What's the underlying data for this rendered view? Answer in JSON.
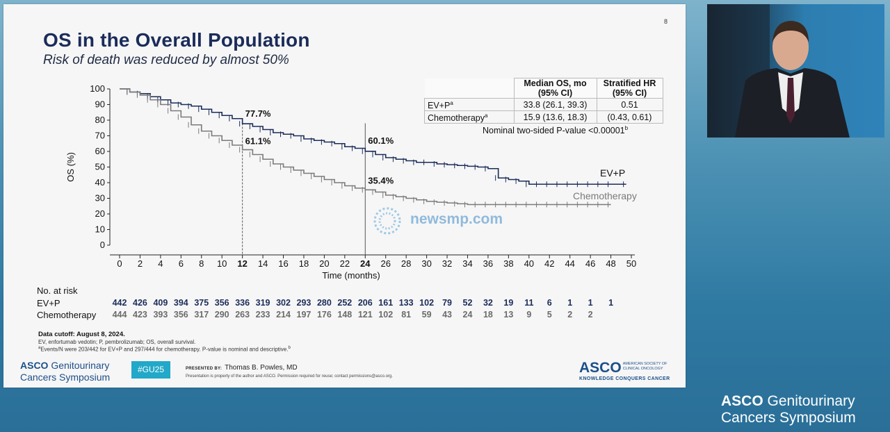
{
  "slide": {
    "number": "8",
    "title": "OS in the Overall Population",
    "subtitle": "Risk of death was reduced by almost 50%"
  },
  "stats_table": {
    "headers": [
      "",
      "Median OS, mo (95% CI)",
      "Stratified HR (95% CI)"
    ],
    "rows": [
      {
        "arm": "EV+P",
        "sup": "a",
        "median": "33.8 (26.1, 39.3)",
        "hr": "0.51"
      },
      {
        "arm": "Chemotherapy",
        "sup": "a",
        "median": "15.9 (13.6, 18.3)",
        "hr": "(0.43, 0.61)"
      }
    ],
    "pvalue": "Nominal two-sided P-value <0.00001",
    "pvalue_sup": "b"
  },
  "chart_data": {
    "type": "line",
    "xlabel": "Time (months)",
    "ylabel": "OS (%)",
    "xlim": [
      0,
      50
    ],
    "ylim": [
      0,
      100
    ],
    "x_ticks": [
      "0",
      "2",
      "4",
      "6",
      "8",
      "10",
      "12",
      "14",
      "16",
      "18",
      "20",
      "22",
      "24",
      "26",
      "28",
      "30",
      "32",
      "34",
      "36",
      "38",
      "40",
      "42",
      "44",
      "46",
      "48",
      "50"
    ],
    "x_ticks_bold": [
      "12",
      "24"
    ],
    "y_ticks": [
      "0",
      "10",
      "20",
      "30",
      "40",
      "50",
      "60",
      "70",
      "80",
      "90",
      "100"
    ],
    "series": [
      {
        "name": "EV+P",
        "color": "#1b2c5a",
        "x": [
          0,
          1,
          2,
          3,
          4,
          5,
          6,
          7,
          8,
          9,
          10,
          11,
          12,
          13,
          14,
          15,
          16,
          17,
          18,
          19,
          20,
          21,
          22,
          23,
          24,
          25,
          26,
          27,
          28,
          29,
          30,
          31,
          32,
          33,
          34,
          35,
          36,
          37,
          38,
          39,
          40,
          41,
          42,
          43,
          44,
          45,
          46,
          47,
          48,
          49.5
        ],
        "y": [
          100,
          98,
          97,
          95,
          93,
          91,
          90,
          89,
          87,
          85,
          83,
          81,
          77.7,
          76,
          74,
          72,
          71,
          70,
          68,
          67,
          66,
          65,
          63,
          62,
          60.1,
          58,
          56,
          55,
          54,
          53,
          53,
          52,
          51.5,
          51,
          50.5,
          50,
          49,
          43,
          42,
          41,
          39,
          39,
          39,
          39,
          39,
          39,
          39,
          39,
          39,
          39
        ]
      },
      {
        "name": "Chemotherapy",
        "color": "#7a7a7a",
        "x": [
          0,
          1,
          2,
          3,
          4,
          5,
          6,
          7,
          8,
          9,
          10,
          11,
          12,
          13,
          14,
          15,
          16,
          17,
          18,
          19,
          20,
          21,
          22,
          23,
          24,
          25,
          26,
          27,
          28,
          29,
          30,
          31,
          32,
          33,
          34,
          35,
          36,
          37,
          38,
          39,
          40,
          41,
          42,
          43,
          44,
          45,
          46,
          47,
          48
        ],
        "y": [
          100,
          98,
          96,
          93,
          90,
          86,
          82,
          77,
          73,
          70,
          67,
          64,
          61.1,
          58,
          55,
          52,
          50,
          48,
          46,
          44,
          42,
          40,
          38,
          36.5,
          35.4,
          34,
          32,
          31,
          30,
          29,
          28,
          27.5,
          27,
          26.5,
          26,
          26,
          26,
          26,
          26,
          26,
          26,
          26,
          26,
          26,
          26,
          26,
          26,
          26,
          26
        ]
      }
    ],
    "annotations": [
      {
        "text": "77.7%",
        "x": 12,
        "y": 77.7
      },
      {
        "text": "61.1%",
        "x": 12,
        "y": 61.1
      },
      {
        "text": "60.1%",
        "x": 24,
        "y": 60.1
      },
      {
        "text": "35.4%",
        "x": 24,
        "y": 35.4
      }
    ],
    "reference_lines_x": [
      12,
      24
    ],
    "legend_labels": [
      {
        "text": "EV+P",
        "series": "EV+P"
      },
      {
        "text": "Chemotherapy",
        "series": "Chemotherapy"
      }
    ]
  },
  "risk_table": {
    "title": "No. at risk",
    "times": [
      0,
      2,
      4,
      6,
      8,
      10,
      12,
      14,
      16,
      18,
      20,
      22,
      24,
      26,
      28,
      30,
      32,
      34,
      36,
      38,
      40,
      42,
      44,
      46,
      48
    ],
    "ev_label": "EV+P",
    "ev": [
      "442",
      "426",
      "409",
      "394",
      "375",
      "356",
      "336",
      "319",
      "302",
      "293",
      "280",
      "252",
      "206",
      "161",
      "133",
      "102",
      "79",
      "52",
      "32",
      "19",
      "11",
      "6",
      "1",
      "1",
      "1"
    ],
    "chemo_label": "Chemotherapy",
    "chemo": [
      "444",
      "423",
      "393",
      "356",
      "317",
      "290",
      "263",
      "233",
      "214",
      "197",
      "176",
      "148",
      "121",
      "102",
      "81",
      "59",
      "43",
      "24",
      "18",
      "13",
      "9",
      "5",
      "2",
      "2",
      ""
    ]
  },
  "notes": {
    "cutoff": "Data cutoff: August 8, 2024.",
    "abbrev": "EV, enfortumab vedotin; P, pembrolizumab; OS, overall survival.",
    "events": "Events/N were 203/442 for EV+P and 297/444 for chemotherapy. P-value is nominal and descriptive.",
    "events_sup_a": "a",
    "events_sup_b": "b"
  },
  "footer": {
    "logo_brand": "ASCO",
    "logo_line1": "Genitourinary",
    "logo_line2": "Cancers Symposium",
    "hashtag": "#GU25",
    "presented_by_label": "PRESENTED BY:",
    "presenter": "Thomas B. Powles, MD",
    "copyright": "Presentation is property of the author and ASCO. Permission required for reuse; contact permissions@asco.org.",
    "asco_big": "ASCO",
    "asco_small": "AMERICAN SOCIETY OF CLINICAL ONCOLOGY",
    "asco_tagline": "KNOWLEDGE CONQUERS CANCER"
  },
  "watermark": "newsmp.com",
  "bottom_logo": {
    "brand": "ASCO",
    "line1": "Genitourinary",
    "line2": "Cancers Symposium"
  }
}
